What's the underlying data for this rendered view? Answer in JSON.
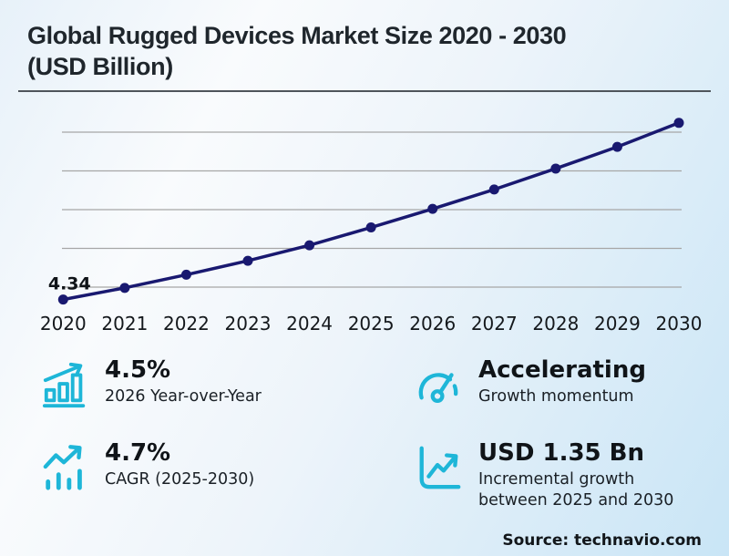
{
  "title_line1": "Global Rugged Devices Market Size 2020 - 2030",
  "title_line2": "(USD Billion)",
  "source": "Source: technavio.com",
  "colors": {
    "line": "#191970",
    "accent": "#1eb6d8",
    "grid": "#a6a6a6",
    "text": "#14181c"
  },
  "chart_data": {
    "type": "line",
    "title": "Global Rugged Devices Market Size 2020 - 2030 (USD Billion)",
    "xlabel": "",
    "ylabel": "USD Billion",
    "categories": [
      "2020",
      "2021",
      "2022",
      "2023",
      "2024",
      "2025",
      "2026",
      "2027",
      "2028",
      "2029",
      "2030"
    ],
    "values": [
      4.34,
      4.49,
      4.66,
      4.84,
      5.04,
      5.27,
      5.51,
      5.76,
      6.03,
      6.31,
      6.62
    ],
    "series_name": "Market size",
    "first_point_label": "4.34",
    "ylim": [
      4.2,
      6.8
    ],
    "gridline_values": [
      4.5,
      5.0,
      5.5,
      6.0,
      6.5
    ],
    "grid": "horizontal",
    "legend": "none",
    "marker": "circle"
  },
  "stats": [
    {
      "icon": "bar-chart-growth-icon",
      "value": "4.5%",
      "label": "2026 Year-over-Year"
    },
    {
      "icon": "gauge-icon",
      "value": "Accelerating",
      "label": "Growth momentum"
    },
    {
      "icon": "trend-up-bars-icon",
      "value": "4.7%",
      "label": "CAGR (2025-2030)"
    },
    {
      "icon": "chart-axes-icon",
      "value": "USD 1.35 Bn",
      "label": "Incremental growth",
      "label2": "between 2025 and 2030"
    }
  ]
}
